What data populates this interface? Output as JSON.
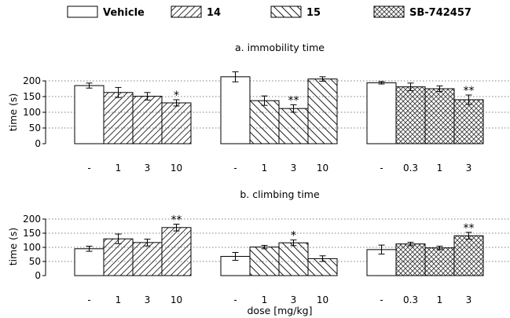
{
  "legend": [
    {
      "label": "Vehicle",
      "pattern": "none"
    },
    {
      "label": "14",
      "pattern": "diag-right"
    },
    {
      "label": "15",
      "pattern": "diag-left"
    },
    {
      "label": "SB-742457",
      "pattern": "crosshatch"
    }
  ],
  "xlabel": "dose [mg/kg]",
  "chart_data": [
    {
      "type": "bar",
      "title": "a. immobility time",
      "ylabel": "time (s)",
      "ylim": [
        0,
        200
      ],
      "yticks": [
        0,
        50,
        100,
        150,
        200
      ],
      "grid": "horizontal-dotted",
      "groups": [
        {
          "compound": "14",
          "categories": [
            "-",
            "1",
            "3",
            "10"
          ],
          "values": [
            185,
            163,
            151,
            130
          ],
          "errors": [
            8,
            16,
            12,
            10
          ],
          "sig": [
            "",
            "",
            "",
            "*"
          ]
        },
        {
          "compound": "15",
          "categories": [
            "-",
            "1",
            "3",
            "10"
          ],
          "values": [
            213,
            137,
            112,
            206
          ],
          "errors": [
            16,
            15,
            12,
            7
          ],
          "sig": [
            "",
            "",
            "**",
            ""
          ]
        },
        {
          "compound": "SB-742457",
          "categories": [
            "-",
            "0.3",
            "1",
            "3"
          ],
          "values": [
            194,
            181,
            175,
            140
          ],
          "errors": [
            4,
            12,
            9,
            15
          ],
          "sig": [
            "",
            "",
            "",
            "**"
          ]
        }
      ]
    },
    {
      "type": "bar",
      "title": "b. climbing time",
      "ylabel": "time (s)",
      "ylim": [
        0,
        200
      ],
      "yticks": [
        0,
        50,
        100,
        150,
        200
      ],
      "grid": "horizontal-dotted",
      "groups": [
        {
          "compound": "14",
          "categories": [
            "-",
            "1",
            "3",
            "10"
          ],
          "values": [
            95,
            130,
            117,
            170
          ],
          "errors": [
            9,
            17,
            12,
            12
          ],
          "sig": [
            "",
            "",
            "",
            "**"
          ]
        },
        {
          "compound": "15",
          "categories": [
            "-",
            "1",
            "3",
            "10"
          ],
          "values": [
            68,
            101,
            116,
            60
          ],
          "errors": [
            14,
            6,
            10,
            10
          ],
          "sig": [
            "",
            "",
            "*",
            ""
          ]
        },
        {
          "compound": "SB-742457",
          "categories": [
            "-",
            "0.3",
            "1",
            "3"
          ],
          "values": [
            92,
            112,
            98,
            141
          ],
          "errors": [
            16,
            6,
            6,
            12
          ],
          "sig": [
            "",
            "",
            "",
            "**"
          ]
        }
      ]
    }
  ]
}
